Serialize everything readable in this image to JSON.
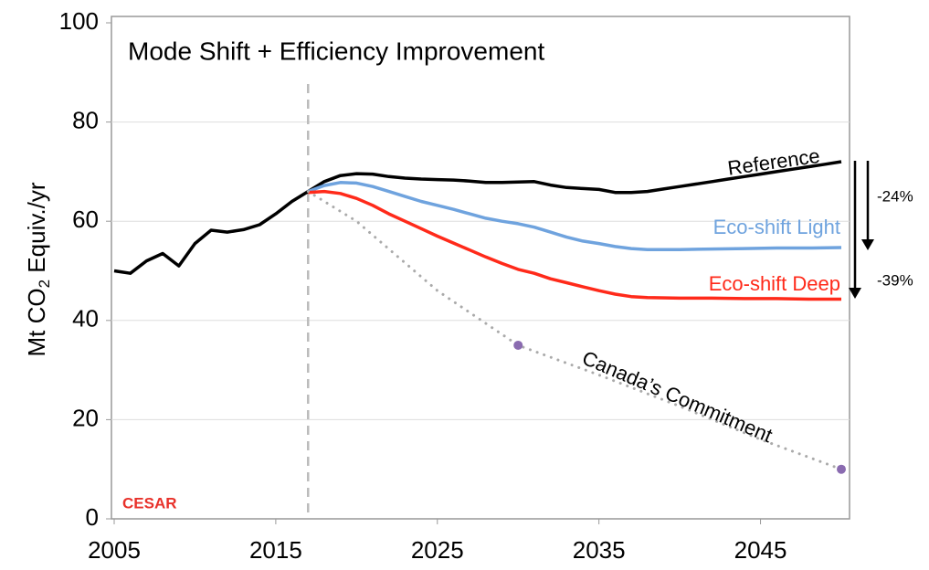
{
  "chart_data": {
    "type": "line",
    "title": "Mode Shift + Efficiency Improvement",
    "y_label": {
      "text": "Mt CO",
      "sub": "2",
      "rest": " Equiv./yr"
    },
    "xlim": [
      2005,
      2050
    ],
    "xticks": [
      2005,
      2015,
      2025,
      2035,
      2045
    ],
    "ylim": [
      0,
      100
    ],
    "yticks": [
      0,
      20,
      40,
      60,
      80,
      100
    ],
    "grid": true,
    "projection_start": 2017,
    "logo": "CESAR",
    "series": [
      {
        "name": "Reference",
        "color": "#000000",
        "x": [
          2005,
          2006,
          2007,
          2008,
          2009,
          2010,
          2011,
          2012,
          2013,
          2014,
          2015,
          2016,
          2017,
          2018,
          2019,
          2020,
          2021,
          2022,
          2023,
          2024,
          2025,
          2026,
          2027,
          2028,
          2029,
          2030,
          2031,
          2032,
          2033,
          2034,
          2035,
          2036,
          2037,
          2038,
          2039,
          2040,
          2041,
          2042,
          2043,
          2044,
          2045,
          2046,
          2047,
          2048,
          2049,
          2050
        ],
        "values": [
          50,
          49.5,
          52,
          53.5,
          51,
          55.5,
          58.2,
          57.8,
          58.3,
          59.3,
          61.5,
          64,
          66,
          68,
          69.2,
          69.6,
          69.5,
          69,
          68.7,
          68.5,
          68.4,
          68.3,
          68.1,
          67.8,
          67.8,
          67.9,
          68,
          67.3,
          66.8,
          66.6,
          66.4,
          65.8,
          65.8,
          66,
          66.5,
          67,
          67.5,
          68,
          68.5,
          69,
          69.5,
          70,
          70.5,
          71,
          71.5,
          72
        ]
      },
      {
        "name": "Eco-shift Light",
        "color": "#6fa3de",
        "x": [
          2017,
          2018,
          2019,
          2020,
          2021,
          2022,
          2023,
          2024,
          2025,
          2026,
          2027,
          2028,
          2029,
          2030,
          2031,
          2032,
          2033,
          2034,
          2035,
          2036,
          2037,
          2038,
          2040,
          2042,
          2044,
          2046,
          2048,
          2050
        ],
        "values": [
          66,
          67.2,
          67.8,
          67.7,
          67,
          66,
          65,
          64,
          63.2,
          62.4,
          61.5,
          60.6,
          60,
          59.5,
          58.8,
          57.8,
          56.8,
          56,
          55.5,
          54.9,
          54.5,
          54.3,
          54.3,
          54.4,
          54.5,
          54.6,
          54.6,
          54.7
        ]
      },
      {
        "name": "Eco-shift Deep",
        "color": "#ff2a1a",
        "x": [
          2017,
          2018,
          2019,
          2020,
          2021,
          2022,
          2023,
          2024,
          2025,
          2026,
          2027,
          2028,
          2029,
          2030,
          2031,
          2032,
          2033,
          2034,
          2035,
          2036,
          2037,
          2038,
          2040,
          2042,
          2044,
          2046,
          2048,
          2050
        ],
        "values": [
          65.8,
          66,
          65.6,
          64.6,
          63.2,
          61.5,
          60,
          58.5,
          57,
          55.6,
          54.2,
          52.8,
          51.5,
          50.3,
          49.5,
          48.4,
          47.6,
          46.8,
          46,
          45.3,
          44.8,
          44.6,
          44.5,
          44.5,
          44.4,
          44.4,
          44.3,
          44.3
        ]
      },
      {
        "name": "Canada’s Commitment",
        "color": "#aaaaaa",
        "dotted": true,
        "marker_color": "#8a6bb0",
        "marker_indices": [
          3,
          7
        ],
        "x": [
          2017,
          2020,
          2025,
          2030,
          2035,
          2040,
          2045,
          2050
        ],
        "values": [
          66,
          60,
          46,
          35,
          29,
          22.7,
          16,
          10
        ]
      }
    ],
    "annotations": [
      "-24%",
      "-39%"
    ]
  }
}
